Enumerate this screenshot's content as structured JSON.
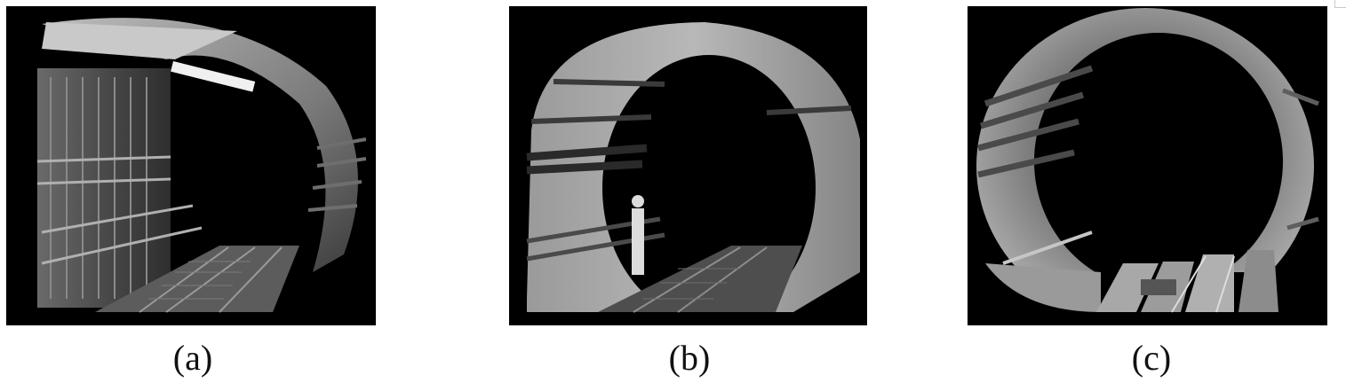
{
  "figure": {
    "panels": [
      {
        "id": "a",
        "caption": "(a)"
      },
      {
        "id": "b",
        "caption": "(b)"
      },
      {
        "id": "c",
        "caption": "(c)"
      }
    ]
  },
  "colors": {
    "panel_background": "#000000",
    "caption_text": "#111111",
    "page_background": "#ffffff"
  }
}
